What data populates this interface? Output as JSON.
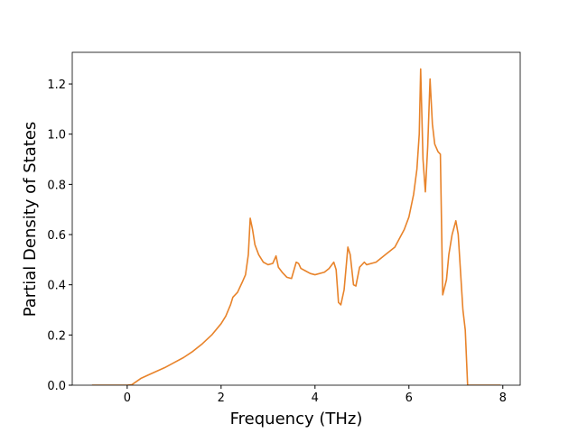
{
  "chart_data": {
    "type": "line",
    "xlabel": "Frequency (THz)",
    "ylabel": "Partial Density of States",
    "x": [
      -0.75,
      0,
      0.1,
      0.2,
      0.3,
      0.5,
      0.8,
      1.0,
      1.2,
      1.4,
      1.6,
      1.8,
      2.0,
      2.1,
      2.2,
      2.25,
      2.35,
      2.45,
      2.52,
      2.58,
      2.62,
      2.67,
      2.72,
      2.8,
      2.9,
      3.0,
      3.1,
      3.17,
      3.22,
      3.3,
      3.4,
      3.5,
      3.6,
      3.65,
      3.7,
      3.8,
      3.9,
      4.0,
      4.2,
      4.3,
      4.4,
      4.45,
      4.5,
      4.55,
      4.62,
      4.7,
      4.75,
      4.82,
      4.87,
      4.95,
      5.05,
      5.1,
      5.3,
      5.5,
      5.7,
      5.9,
      6.0,
      6.1,
      6.17,
      6.22,
      6.25,
      6.3,
      6.35,
      6.4,
      6.45,
      6.5,
      6.55,
      6.62,
      6.67,
      6.72,
      6.8,
      6.85,
      6.92,
      7.0,
      7.05,
      7.1,
      7.15,
      7.2,
      7.25,
      7.95
    ],
    "values": [
      0,
      0,
      0.002,
      0.015,
      0.028,
      0.045,
      0.07,
      0.09,
      0.11,
      0.135,
      0.165,
      0.2,
      0.245,
      0.275,
      0.32,
      0.35,
      0.37,
      0.41,
      0.44,
      0.52,
      0.665,
      0.62,
      0.56,
      0.52,
      0.49,
      0.48,
      0.485,
      0.515,
      0.47,
      0.45,
      0.43,
      0.425,
      0.49,
      0.485,
      0.465,
      0.455,
      0.445,
      0.44,
      0.45,
      0.465,
      0.49,
      0.46,
      0.33,
      0.32,
      0.38,
      0.55,
      0.52,
      0.4,
      0.395,
      0.47,
      0.49,
      0.48,
      0.49,
      0.52,
      0.55,
      0.62,
      0.67,
      0.76,
      0.86,
      1.0,
      1.26,
      0.9,
      0.77,
      0.95,
      1.22,
      1.04,
      0.96,
      0.93,
      0.92,
      0.36,
      0.42,
      0.52,
      0.6,
      0.655,
      0.6,
      0.45,
      0.3,
      0.22,
      0,
      0
    ],
    "color": "#e8832a",
    "xlim": [
      -1.17,
      8.37
    ],
    "ylim": [
      0,
      1.326
    ],
    "xticks": [
      0,
      2,
      4,
      6,
      8
    ],
    "yticks": [
      {
        "value": 0,
        "label": "0.0"
      },
      0.2,
      0.4,
      0.6,
      0.8,
      {
        "value": 1,
        "label": "1.0"
      },
      1.2
    ]
  }
}
